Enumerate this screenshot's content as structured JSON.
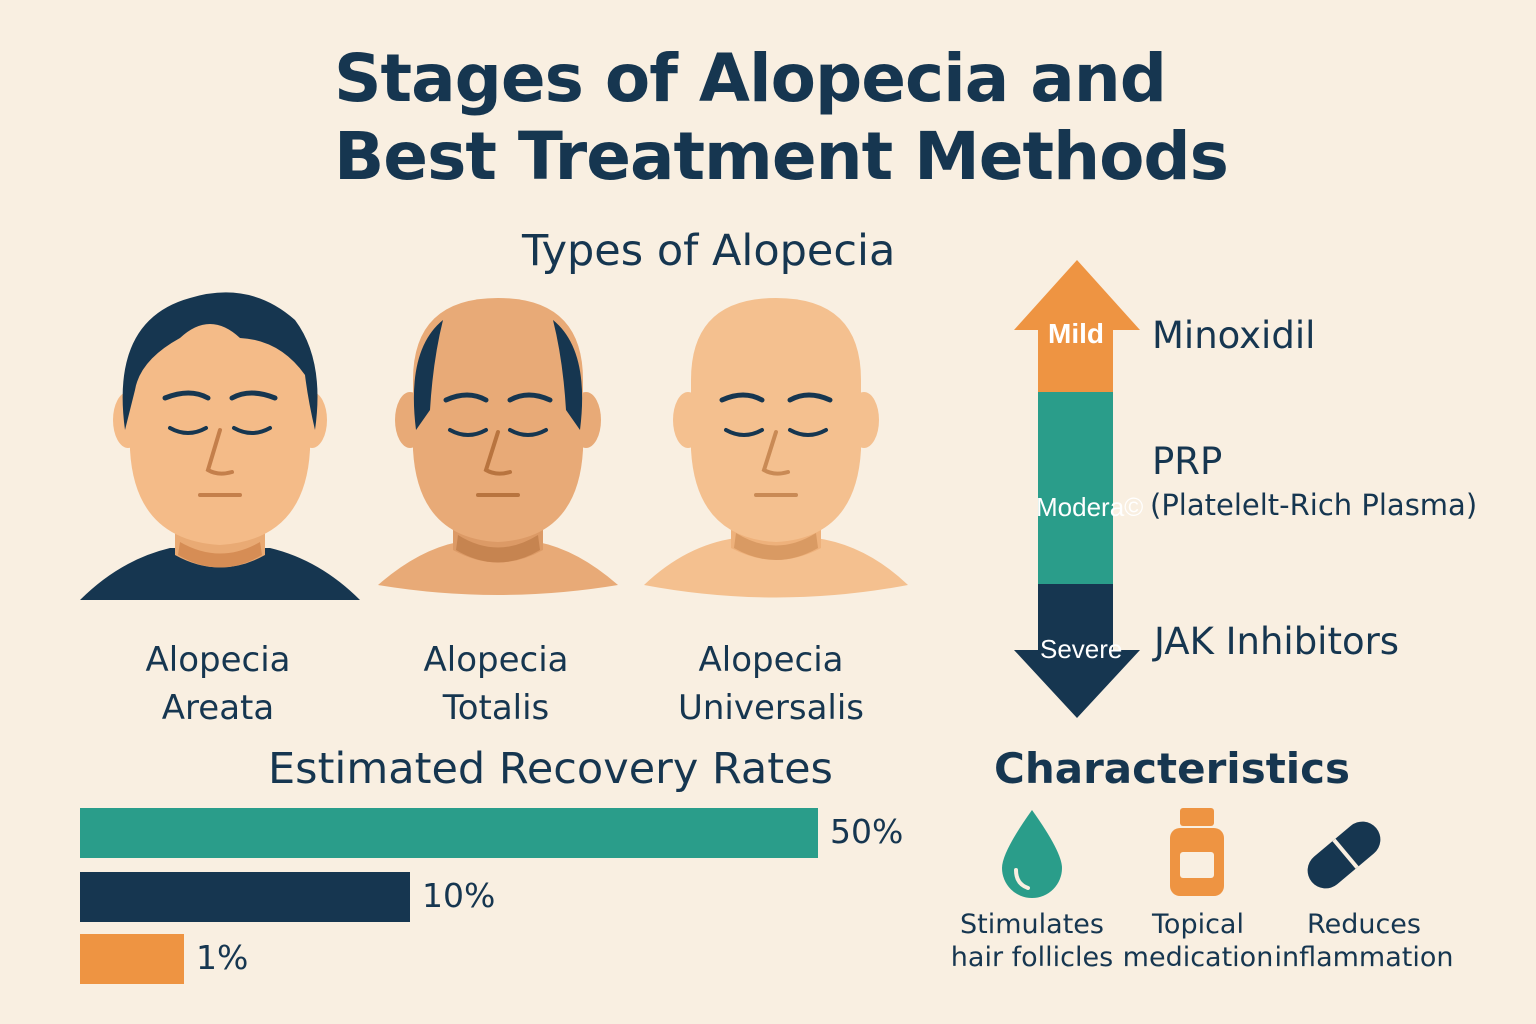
{
  "title": {
    "line1": "Stages of Alopecia and",
    "line2": "Best Treatment Methods"
  },
  "types": {
    "heading": "Types of Alopecia",
    "items": [
      {
        "line1": "Alopecia",
        "line2": "Areata",
        "icon": "man-face-full-hair-icon"
      },
      {
        "line1": "Alopecia",
        "line2": "Totalis",
        "icon": "man-face-balding-icon"
      },
      {
        "line1": "Alopecia",
        "line2": "Universalis",
        "icon": "man-face-bald-icon"
      }
    ]
  },
  "severity": {
    "stages": [
      {
        "label": "Mild",
        "color": "#ee9442",
        "treatment": "Minoxidil"
      },
      {
        "label": "Modera©",
        "color": "#2a9d8a",
        "treatment": "PRP",
        "treatment_sub": "(Platelelt-Rich Plasma)"
      },
      {
        "label": "Severe",
        "color": "#163650",
        "treatment": "JAK Inhibitors"
      }
    ]
  },
  "recovery": {
    "heading": "Estimated Recovery Rates",
    "bars": [
      {
        "value": 50,
        "label": "50%",
        "color": "#2a9d8a"
      },
      {
        "value": 10,
        "label": "10%",
        "color": "#163650"
      },
      {
        "value": 1,
        "label": "1%",
        "color": "#ee9442"
      }
    ]
  },
  "characteristics": {
    "heading": "Characteristics",
    "items": [
      {
        "icon": "water-drop-icon",
        "line1": "Stimulates",
        "line2": "hair follicles",
        "color": "#2a9d8a"
      },
      {
        "icon": "medicine-bottle-icon",
        "line1": "Topical",
        "line2": "medication",
        "color": "#ee9442"
      },
      {
        "icon": "capsule-pill-icon",
        "line1": "Reduces",
        "line2": "inflammation",
        "color": "#163650"
      }
    ]
  }
}
